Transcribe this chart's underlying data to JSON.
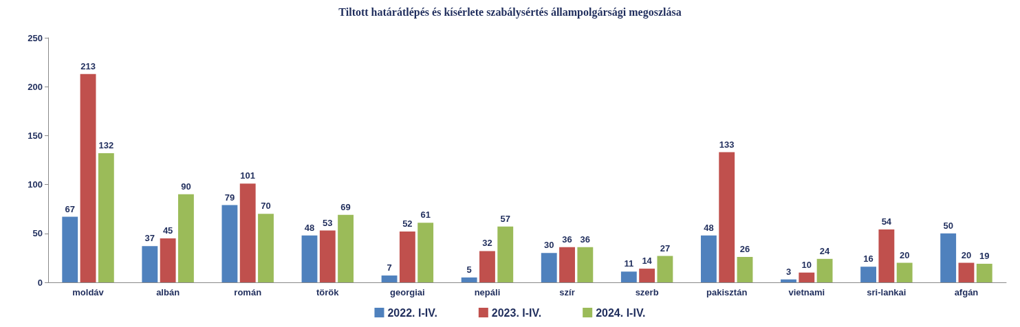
{
  "chart_data": {
    "type": "bar",
    "title": "Tiltott határátlépés és kísérlete szabálysértés állampolgársági megoszlása",
    "categories": [
      "moldáv",
      "albán",
      "román",
      "török",
      "georgiai",
      "nepáli",
      "szír",
      "szerb",
      "pakisztán",
      "vietnami",
      "sri-lankai",
      "afgán"
    ],
    "series": [
      {
        "name": "2022. I-IV.",
        "color": "#4f81bd",
        "values": [
          67,
          37,
          79,
          48,
          7,
          5,
          30,
          11,
          48,
          3,
          16,
          50
        ]
      },
      {
        "name": "2023. I-IV.",
        "color": "#c0504d",
        "values": [
          213,
          45,
          101,
          53,
          52,
          32,
          36,
          14,
          133,
          10,
          54,
          20
        ]
      },
      {
        "name": "2024. I-IV.",
        "color": "#9bbb59",
        "values": [
          132,
          90,
          70,
          69,
          61,
          57,
          36,
          27,
          26,
          24,
          20,
          19
        ]
      }
    ],
    "ylim": [
      0,
      250
    ],
    "yticks": [
      0,
      50,
      100,
      150,
      200,
      250
    ],
    "grid": false,
    "legend": "bottom",
    "data_labels": true
  }
}
